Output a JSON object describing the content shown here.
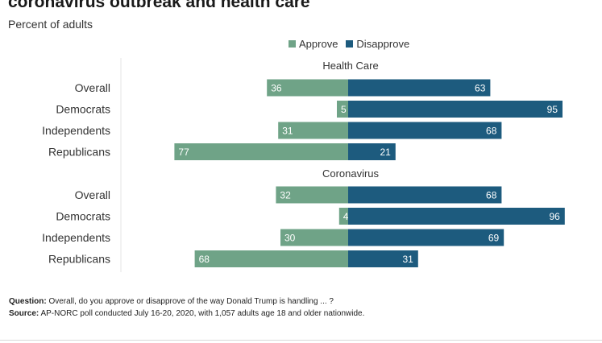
{
  "title": "coronavirus outbreak and health care",
  "subtitle": "Percent of adults",
  "legend": [
    {
      "label": "Approve",
      "color": "#6fa387"
    },
    {
      "label": "Disapprove",
      "color": "#1d5b7e"
    }
  ],
  "chart_data": {
    "type": "bar",
    "orientation": "horizontal-diverging",
    "colors": {
      "approve": "#6fa387",
      "disapprove": "#1d5b7e"
    },
    "panels": [
      {
        "name": "Health Care",
        "categories": [
          "Overall",
          "Democrats",
          "Independents",
          "Republicans"
        ],
        "series": [
          {
            "name": "Approve",
            "values": [
              36,
              5,
              31,
              77
            ]
          },
          {
            "name": "Disapprove",
            "values": [
              63,
              95,
              68,
              21
            ]
          }
        ]
      },
      {
        "name": "Coronavirus",
        "categories": [
          "Overall",
          "Democrats",
          "Independents",
          "Republicans"
        ],
        "series": [
          {
            "name": "Approve",
            "values": [
              32,
              4,
              30,
              68
            ]
          },
          {
            "name": "Disapprove",
            "values": [
              68,
              96,
              69,
              31
            ]
          }
        ]
      }
    ]
  },
  "footnotes": {
    "question_label": "Question:",
    "question_text": " Overall, do you approve or disapprove of the way Donald Trump is handling ... ?",
    "source_label": "Source:",
    "source_text": " AP-NORC poll conducted July 16-20, 2020, with 1,057 adults age 18 and older nationwide."
  }
}
